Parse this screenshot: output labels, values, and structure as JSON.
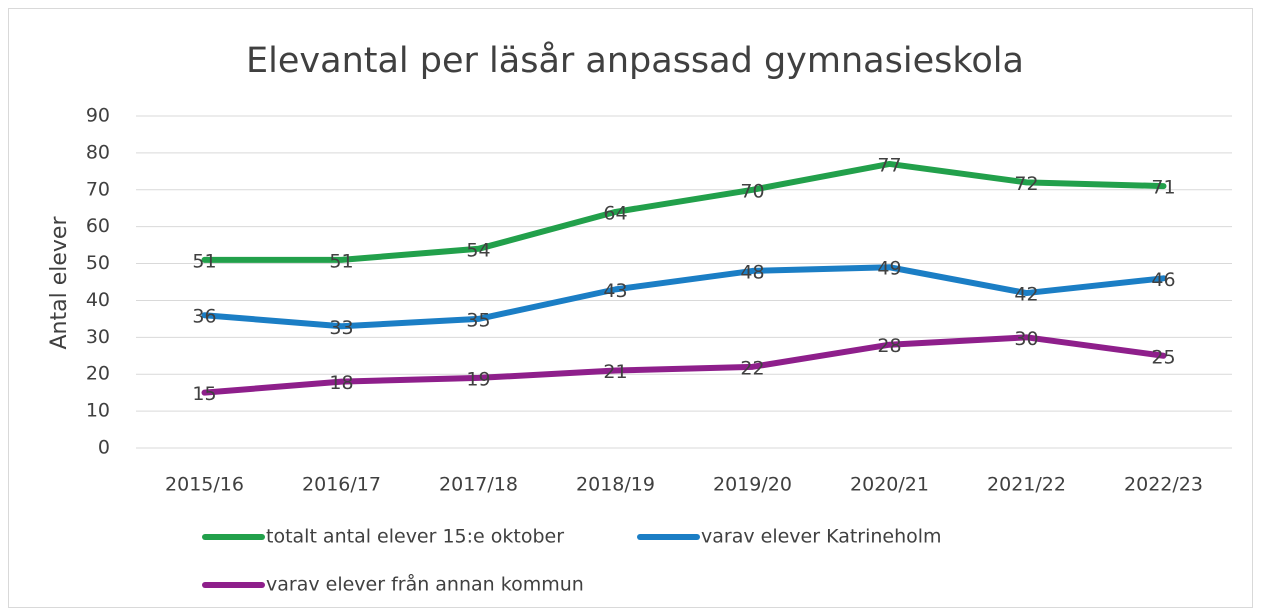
{
  "chart_data": {
    "type": "line",
    "title": "Elevantal per läsår anpassad gymnasieskola",
    "y_label": "Antal elever",
    "categories": [
      "2015/16",
      "2016/17",
      "2017/18",
      "2018/19",
      "2019/20",
      "2020/21",
      "2021/22",
      "2022/23"
    ],
    "series": [
      {
        "name": "totalt antal elever 15:e oktober",
        "color": "#22a04b",
        "values": [
          51,
          51,
          54,
          64,
          70,
          77,
          72,
          71
        ]
      },
      {
        "name": "varav elever Katrineholm",
        "color": "#1b7ec5",
        "values": [
          36,
          33,
          35,
          43,
          48,
          49,
          42,
          46
        ]
      },
      {
        "name": "varav elever från annan kommun",
        "color": "#8e1f8b",
        "values": [
          15,
          18,
          19,
          21,
          22,
          28,
          30,
          25
        ]
      }
    ],
    "ylim": [
      0,
      90
    ],
    "yticks": [
      0,
      10,
      20,
      30,
      40,
      50,
      60,
      70,
      80,
      90
    ],
    "grid": true,
    "legend": "bottom"
  }
}
